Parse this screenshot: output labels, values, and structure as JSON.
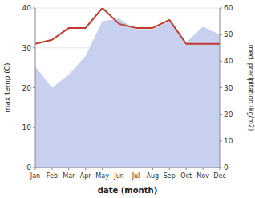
{
  "chart_data": {
    "type": "line",
    "categories": [
      "Jan",
      "Feb",
      "Mar",
      "Apr",
      "May",
      "Jun",
      "Jul",
      "Aug",
      "Sep",
      "Oct",
      "Nov",
      "Dec"
    ],
    "series": [
      {
        "type": "area",
        "color": "#c8d0f0",
        "axis": "y2",
        "values": [
          38,
          30,
          35,
          42,
          55,
          56,
          52,
          52,
          55,
          47,
          53,
          50
        ]
      },
      {
        "type": "line",
        "color": "#c0392b",
        "values": [
          31,
          32,
          35,
          35,
          40,
          36,
          35,
          35,
          37,
          31,
          31,
          31
        ]
      }
    ],
    "xlabel": "date (month)",
    "ylabel": "max temp (C)",
    "y2label": "med. precipitation (kg/m2)",
    "ylim": [
      0,
      40
    ],
    "yticks": [
      0,
      10,
      20,
      30,
      40
    ],
    "y2lim": [
      0,
      60
    ],
    "y2ticks": [
      0,
      10,
      20,
      30,
      40,
      50,
      60
    ],
    "grid": true
  }
}
